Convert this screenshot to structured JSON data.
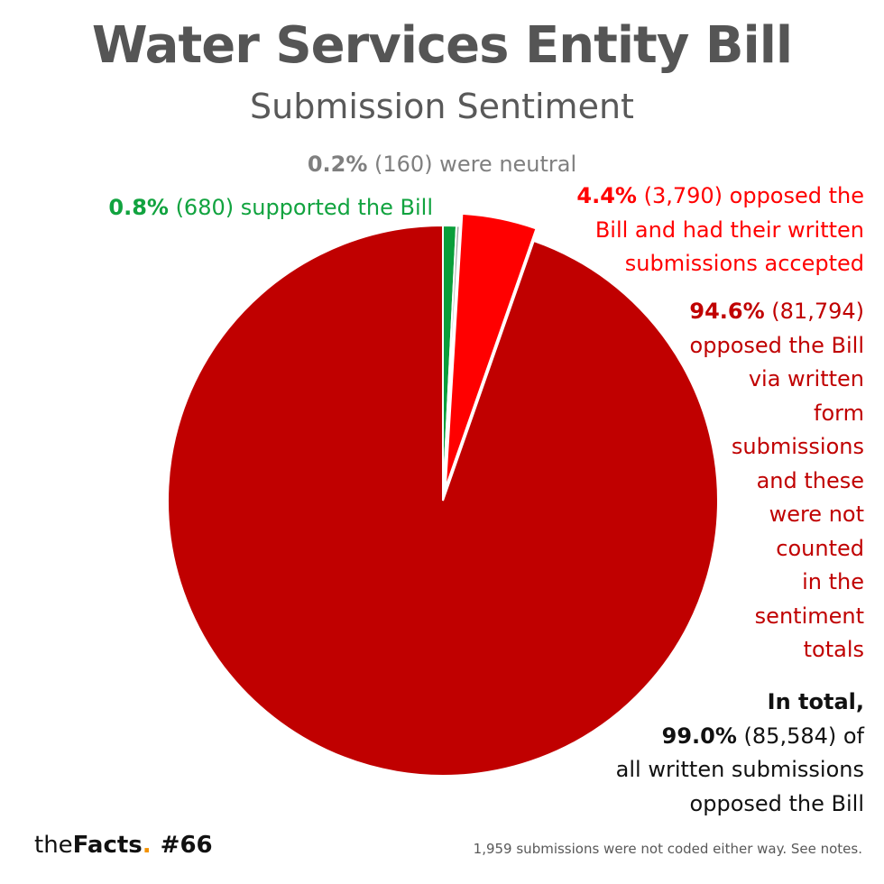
{
  "title": "Water Services Entity Bill",
  "subtitle": "Submission Sentiment",
  "labels": {
    "neutral": {
      "pct": "0.2%",
      "rest": " (160) were neutral"
    },
    "support": {
      "pct": "0.8%",
      "rest": " (680) supported the Bill"
    },
    "opposed_accepted": {
      "pct": "4.4%",
      "line1": " (3,790) opposed the",
      "line2": "Bill and had their written",
      "line3": "submissions accepted"
    },
    "opposed_form": {
      "pct": "94.6%",
      "line1": " (81,794)",
      "line2": "opposed the Bill",
      "line3": "via written",
      "line4": "form",
      "line5": "submissions",
      "line6": "and these",
      "line7": "were not",
      "line8": "counted",
      "line9": "in the",
      "line10": "sentiment",
      "line11": "totals"
    },
    "total": {
      "line1": "In total,",
      "pct": "99.0%",
      "line2": " (85,584) of",
      "line3": "all written submissions",
      "line4": "opposed the Bill"
    }
  },
  "footer": {
    "brand_the": "the",
    "brand_facts": "Facts",
    "brand_dot": ".",
    "issue": "#66",
    "note": "1,959 submissions were not coded either way. See notes."
  },
  "chart_data": {
    "type": "pie",
    "title": "Water Services Entity Bill",
    "subtitle": "Submission Sentiment",
    "slices": [
      {
        "label": "supported the Bill",
        "value": 680,
        "percent": 0.8,
        "color": "#0a9e3a"
      },
      {
        "label": "were neutral",
        "value": 160,
        "percent": 0.2,
        "color": "#a6a6a6"
      },
      {
        "label": "opposed the Bill and had their written submissions accepted",
        "value": 3790,
        "percent": 4.4,
        "color": "#ff0000",
        "exploded": true
      },
      {
        "label": "opposed the Bill via written form submissions and these were not counted in the sentiment totals",
        "value": 81794,
        "percent": 94.6,
        "color": "#c00000"
      }
    ],
    "start_angle_deg": 0,
    "direction": "clockwise"
  }
}
